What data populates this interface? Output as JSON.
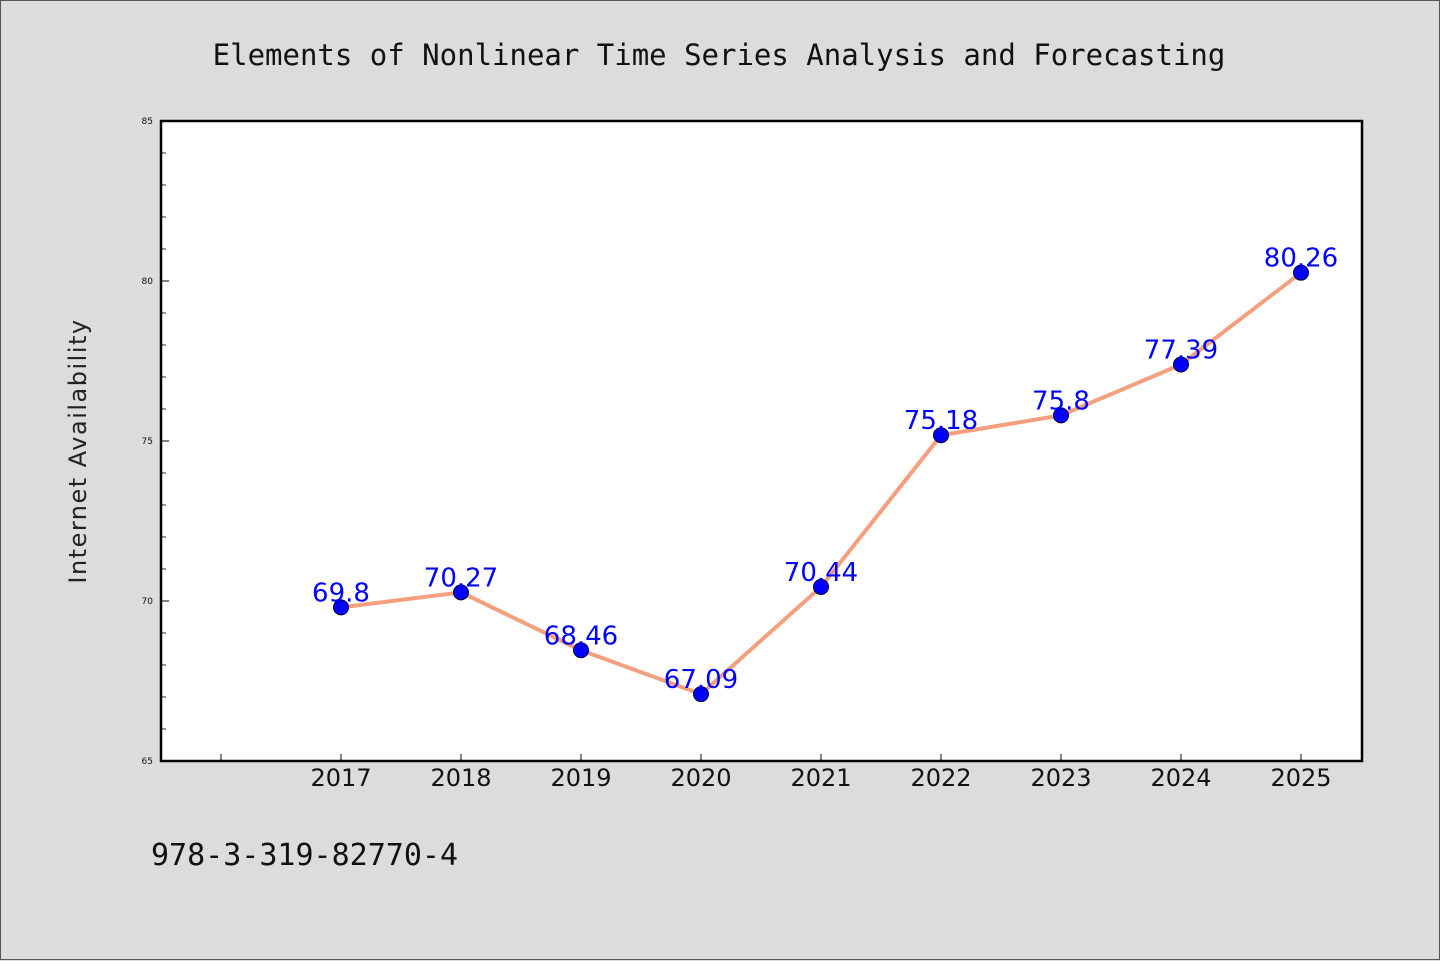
{
  "chart_data": {
    "type": "line",
    "title": "Elements of Nonlinear Time Series Analysis and Forecasting",
    "ylabel": "Internet Availability",
    "xlabel": "",
    "categories": [
      "2017",
      "2018",
      "2019",
      "2020",
      "2021",
      "2022",
      "2023",
      "2024",
      "2025"
    ],
    "values": [
      69.8,
      70.27,
      68.46,
      67.09,
      70.44,
      75.18,
      75.8,
      77.39,
      80.26
    ],
    "data_labels": [
      "69.8",
      "70.27",
      "68.46",
      "67.09",
      "70.44",
      "75.18",
      "75.8",
      "77.39",
      "80.26"
    ],
    "ylim": [
      65,
      85
    ],
    "yticks": [
      "65",
      "70",
      "75",
      "80",
      "85"
    ],
    "grid": false,
    "line_color": "#f4a07e",
    "marker_color": "#0000ff"
  },
  "footer_text": "978-3-319-82770-4"
}
